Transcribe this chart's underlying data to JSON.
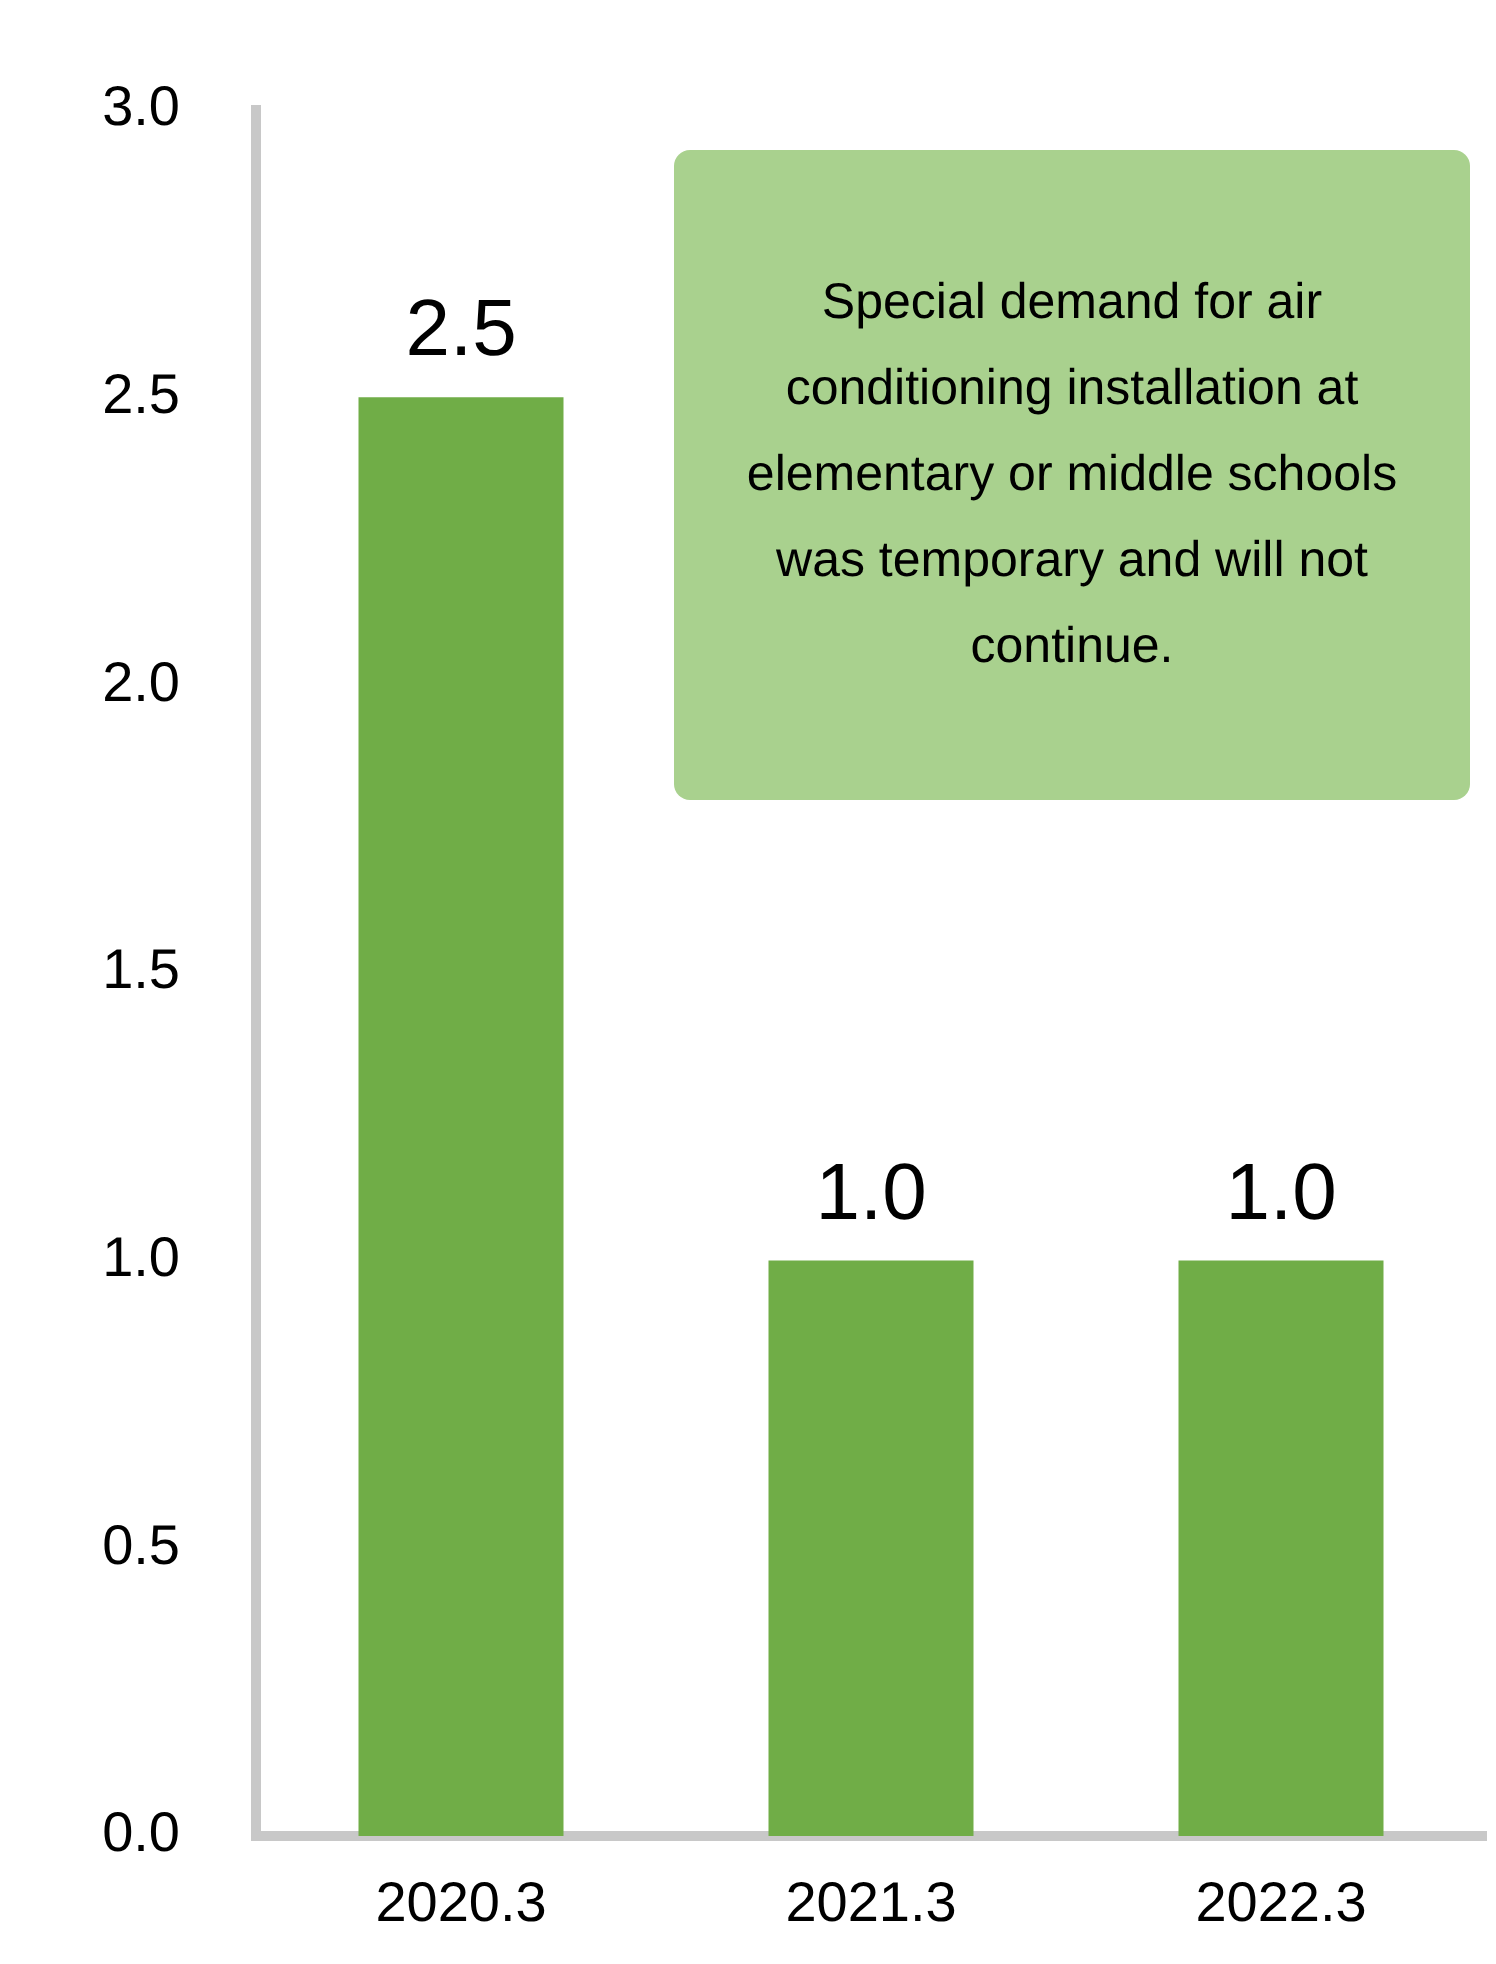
{
  "chart_data": {
    "type": "bar",
    "categories": [
      "2020.3",
      "2021.3",
      "2022.3"
    ],
    "values": [
      2.5,
      1,
      1
    ],
    "color": "#70ad47",
    "value_labels": [
      "2.5",
      "1.0",
      "1.0"
    ],
    "ylim": [
      0,
      3
    ],
    "yticks": [
      {
        "value": 0,
        "label": "0.0"
      },
      {
        "value": 0.5,
        "label": "0.5"
      },
      {
        "value": 1,
        "label": "1.0"
      },
      {
        "value": 1.5,
        "label": "1.5"
      },
      {
        "value": 2,
        "label": "2.0"
      },
      {
        "value": 2.5,
        "label": "2.5"
      },
      {
        "value": 3,
        "label": "3.0"
      }
    ],
    "grid": false,
    "legend": false,
    "annotations": [
      "Special demand for air conditioning installation at elementary or middle schools was temporary and will not continue."
    ]
  }
}
